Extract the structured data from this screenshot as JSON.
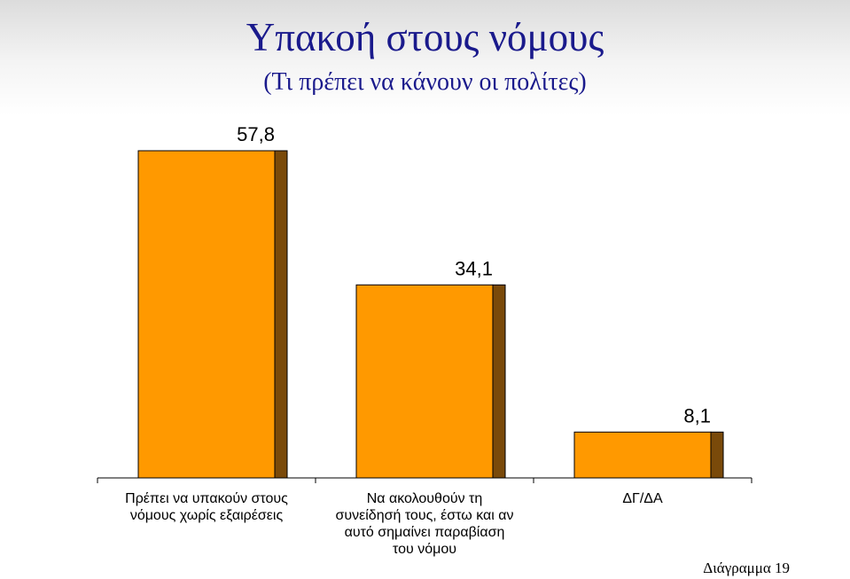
{
  "title": "Υπακοή στους νόμους",
  "subtitle": "(Τι πρέπει να κάνουν οι πολίτες)",
  "footer": "Διάγραμμα 19",
  "colors": {
    "bar_front": "#ff9900",
    "bar_side": "#7a4a0a",
    "title": "#1a1a8c"
  },
  "chart_data": {
    "type": "bar",
    "categories": [
      [
        "Πρέπει να υπακούν στους",
        "νόμους χωρίς εξαιρέσεις"
      ],
      [
        "Να ακολουθούν τη",
        "συνείδησή τους, έστω και αν",
        "αυτό σημαίνει παραβίαση",
        "του νόμου"
      ],
      [
        "ΔΓ/ΔΑ"
      ]
    ],
    "values": [
      57.8,
      34.1,
      8.1
    ],
    "value_labels": [
      "57,8",
      "34,1",
      "8,1"
    ],
    "ylim": [
      0,
      57.8
    ],
    "grid": false,
    "legend": "none"
  }
}
